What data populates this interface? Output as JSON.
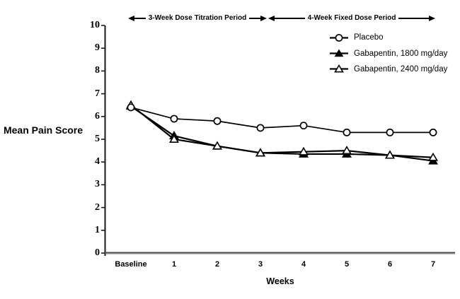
{
  "figure": {
    "background": "#ffffff",
    "line_color": "#000000",
    "axis_color": "#3c3c3c"
  },
  "chart_data": {
    "type": "line",
    "title": "",
    "xlabel": "Weeks",
    "ylabel": "Mean Pain Score",
    "categories": [
      "Baseline",
      "1",
      "2",
      "3",
      "4",
      "5",
      "6",
      "7"
    ],
    "ylim": [
      0,
      10
    ],
    "yticks": [
      0,
      1,
      2,
      3,
      4,
      5,
      6,
      7,
      8,
      9,
      10
    ],
    "grid": false,
    "legend_position": "top-right-inside",
    "annotations": [
      {
        "label": "3-Week Dose Titration Period",
        "x_start": "Baseline",
        "x_end": "3"
      },
      {
        "label": "4-Week Fixed Dose Period",
        "x_start": "3",
        "x_end": "7"
      }
    ],
    "series": [
      {
        "name": "Placebo",
        "marker": "open-circle",
        "color": "#000000",
        "values": [
          6.4,
          5.9,
          5.8,
          5.5,
          5.6,
          5.3,
          5.3,
          5.3
        ]
      },
      {
        "name": "Gabapentin, 1800 mg/day",
        "marker": "filled-triangle",
        "color": "#000000",
        "values": [
          6.45,
          5.15,
          4.7,
          4.4,
          4.35,
          4.35,
          4.3,
          4.05
        ]
      },
      {
        "name": "Gabapentin, 2400 mg/day",
        "marker": "open-triangle",
        "color": "#000000",
        "values": [
          6.5,
          5.0,
          4.7,
          4.4,
          4.45,
          4.5,
          4.3,
          4.2
        ]
      }
    ]
  }
}
